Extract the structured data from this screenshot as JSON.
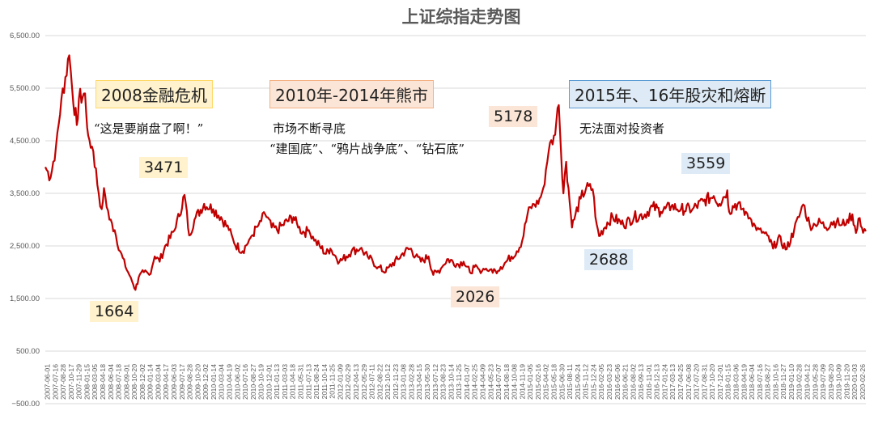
{
  "chart_data": {
    "type": "line",
    "title": "上证综指走势图",
    "ylim": [
      -500,
      6500
    ],
    "y_ticks": [
      "6,500.00",
      "5,500.00",
      "4,500.00",
      "3,500.00",
      "2,500.00",
      "1,500.00",
      "500.00",
      "−500.00"
    ],
    "y_tick_values": [
      6500,
      5500,
      4500,
      3500,
      2500,
      1500,
      500,
      -500
    ],
    "x_tick_labels": [
      "2007-06-01",
      "2007-07-16",
      "2007-08-28",
      "2007-10-17",
      "2007-11-29",
      "2008-01-15",
      "2008-03-05",
      "2008-04-18",
      "2008-06-04",
      "2008-07-18",
      "2008-09-01",
      "2008-10-20",
      "2008-12-02",
      "2009-01-14",
      "2009-03-04",
      "2009-04-17",
      "2009-06-03",
      "2009-07-17",
      "2009-08-28",
      "2009-10-20",
      "2009-12-02",
      "2010-01-14",
      "2010-03-04",
      "2010-04-19",
      "2010-06-02",
      "2010-07-16",
      "2010-08-27",
      "2010-10-19",
      "2010-12-01",
      "2011-01-13",
      "2011-03-03",
      "2011-04-18",
      "2011-05-31",
      "2011-07-13",
      "2011-08-24",
      "2011-10-14",
      "2011-11-25",
      "2012-01-09",
      "2012-02-29",
      "2012-04-13",
      "2012-05-29",
      "2012-07-11",
      "2012-08-22",
      "2012-10-12",
      "2012-11-23",
      "2013-01-08",
      "2013-02-28",
      "2013-04-15",
      "2013-05-30",
      "2013-07-12",
      "2013-08-23",
      "2013-10-14",
      "2013-11-25",
      "2014-01-07",
      "2014-02-25",
      "2014-04-09",
      "2014-05-23",
      "2014-07-07",
      "2014-08-18",
      "2014-10-08",
      "2014-11-19",
      "2015-01-05",
      "2015-02-16",
      "2015-04-02",
      "2015-05-18",
      "2015-06-30",
      "2015-08-11",
      "2015-09-24",
      "2015-11-12",
      "2015-12-24",
      "2016-02-05",
      "2016-03-23",
      "2016-05-06",
      "2016-06-21",
      "2016-08-02",
      "2016-09-13",
      "2016-11-01",
      "2016-12-13",
      "2017-01-24",
      "2017-03-13",
      "2017-04-25",
      "2017-06-08",
      "2017-07-20",
      "2017-08-31",
      "2017-10-20",
      "2017-12-01",
      "2018-01-15",
      "2018-03-06",
      "2018-04-19",
      "2018-06-04",
      "2018-07-16",
      "2018-08-27",
      "2018-10-16",
      "2018-11-27",
      "2019-01-10",
      "2019-02-28",
      "2019-04-12",
      "2019-05-28",
      "2019-07-09",
      "2019-08-20",
      "2019-10-09",
      "2019-11-20",
      "2020-01-03",
      "2020-02-26"
    ],
    "x_date_range": [
      "2007-06-01",
      "2020-03-31"
    ],
    "x": [
      "2007-06-01",
      "2007-07-01",
      "2007-08-01",
      "2007-09-01",
      "2007-10-16",
      "2007-11-01",
      "2007-11-28",
      "2007-12-10",
      "2008-01-14",
      "2008-02-01",
      "2008-03-01",
      "2008-04-01",
      "2008-04-18",
      "2008-05-01",
      "2008-06-01",
      "2008-07-01",
      "2008-08-01",
      "2008-09-01",
      "2008-10-01",
      "2008-10-28",
      "2008-11-15",
      "2008-12-15",
      "2009-01-15",
      "2009-02-15",
      "2009-03-15",
      "2009-04-15",
      "2009-05-15",
      "2009-06-15",
      "2009-08-04",
      "2009-08-31",
      "2009-09-30",
      "2009-11-24",
      "2010-01-15",
      "2010-03-01",
      "2010-04-15",
      "2010-05-15",
      "2010-07-02",
      "2010-08-15",
      "2010-10-01",
      "2010-11-08",
      "2010-12-15",
      "2011-01-15",
      "2011-02-15",
      "2011-04-18",
      "2011-05-15",
      "2011-06-20",
      "2011-07-15",
      "2011-08-15",
      "2011-09-15",
      "2011-10-21",
      "2011-11-15",
      "2012-01-06",
      "2012-02-15",
      "2012-03-15",
      "2012-05-04",
      "2012-06-15",
      "2012-07-15",
      "2012-08-15",
      "2012-09-26",
      "2012-10-15",
      "2012-12-04",
      "2013-01-15",
      "2013-02-18",
      "2013-03-15",
      "2013-04-15",
      "2013-05-29",
      "2013-06-25",
      "2013-07-15",
      "2013-08-15",
      "2013-09-12",
      "2013-10-15",
      "2013-11-15",
      "2013-12-15",
      "2014-01-20",
      "2014-02-15",
      "2014-03-15",
      "2014-04-15",
      "2014-05-15",
      "2014-06-15",
      "2014-07-15",
      "2014-08-15",
      "2014-09-15",
      "2014-10-15",
      "2014-11-15",
      "2014-12-15",
      "2015-01-15",
      "2015-02-15",
      "2015-03-15",
      "2015-04-15",
      "2015-05-15",
      "2015-06-12",
      "2015-07-08",
      "2015-07-24",
      "2015-08-26",
      "2015-09-15",
      "2015-10-15",
      "2015-11-15",
      "2015-12-22",
      "2016-01-15",
      "2016-01-28",
      "2016-03-15",
      "2016-04-15",
      "2016-06-15",
      "2016-08-15",
      "2016-10-15",
      "2016-11-29",
      "2017-01-15",
      "2017-03-15",
      "2017-05-10",
      "2017-07-15",
      "2017-09-15",
      "2017-11-13",
      "2017-12-15",
      "2018-01-29",
      "2018-02-09",
      "2018-03-15",
      "2018-05-15",
      "2018-06-15",
      "2018-07-15",
      "2018-08-15",
      "2018-09-15",
      "2018-10-18",
      "2018-11-15",
      "2019-01-04",
      "2019-02-15",
      "2019-03-15",
      "2019-04-08",
      "2019-05-15",
      "2019-06-15",
      "2019-07-15",
      "2019-08-15",
      "2019-09-15",
      "2019-10-15",
      "2019-11-15",
      "2019-12-15",
      "2020-01-14",
      "2020-02-03",
      "2020-02-25",
      "2020-03-15",
      "2020-03-31"
    ],
    "series": [
      {
        "color": "#c00000",
        "values": [
          4000,
          3800,
          4400,
          5300,
          6124,
          5500,
          4800,
          5300,
          5400,
          4600,
          4300,
          3500,
          3200,
          3600,
          3000,
          2800,
          2400,
          2100,
          1900,
          1664,
          1900,
          2000,
          1950,
          2300,
          2200,
          2500,
          2650,
          2850,
          3471,
          2700,
          3000,
          3300,
          3200,
          3050,
          2800,
          2550,
          2400,
          2650,
          2900,
          3100,
          2850,
          2800,
          2900,
          3050,
          2850,
          2750,
          2800,
          2600,
          2500,
          2350,
          2450,
          2200,
          2300,
          2400,
          2450,
          2300,
          2200,
          2100,
          2000,
          2100,
          2250,
          2400,
          2450,
          2300,
          2200,
          2300,
          1950,
          2000,
          2100,
          2250,
          2200,
          2150,
          2200,
          2000,
          2100,
          2050,
          2050,
          2050,
          2030,
          2100,
          2200,
          2300,
          2400,
          2600,
          3100,
          3300,
          3300,
          3600,
          4300,
          4600,
          5178,
          3500,
          4100,
          2850,
          3100,
          3400,
          3600,
          3580,
          2900,
          2688,
          2950,
          3050,
          2900,
          3050,
          3100,
          3250,
          3150,
          3250,
          3200,
          3200,
          3350,
          3450,
          3300,
          3559,
          3150,
          3300,
          3150,
          3000,
          2800,
          2750,
          2700,
          2449,
          2650,
          2440,
          2800,
          3050,
          3288,
          2900,
          2900,
          2950,
          2850,
          2950,
          2950,
          2900,
          3000,
          3100,
          2746,
          3030,
          2750,
          2780
        ]
      }
    ],
    "grid": true,
    "legend": "none",
    "annotations": [
      {
        "text": "2008金融危机",
        "fill": "#fff2cc",
        "border": "#ffd966"
      },
      {
        "text": "2010年-2014年熊市",
        "fill": "#fbe5d6",
        "border": "#f4b183"
      },
      {
        "text": "2015年、16年股灾和熔断",
        "fill": "#deebf7",
        "border": "#5b9bd5"
      },
      {
        "text": "“这是要崩盘了啊！”"
      },
      {
        "text": "市场不断寻底"
      },
      {
        "text": "“建国底”、“鸦片战争底”、“钻石底”"
      },
      {
        "text": "无法面对投资者"
      },
      {
        "text": "3471",
        "fill": "#fff2cc"
      },
      {
        "text": "1664",
        "fill": "#fff2cc"
      },
      {
        "text": "2026",
        "fill": "#fbe5d6"
      },
      {
        "text": "5178",
        "fill": "#fbe5d6"
      },
      {
        "text": "3559",
        "fill": "#deebf7"
      },
      {
        "text": "2688",
        "fill": "#deebf7"
      }
    ]
  }
}
